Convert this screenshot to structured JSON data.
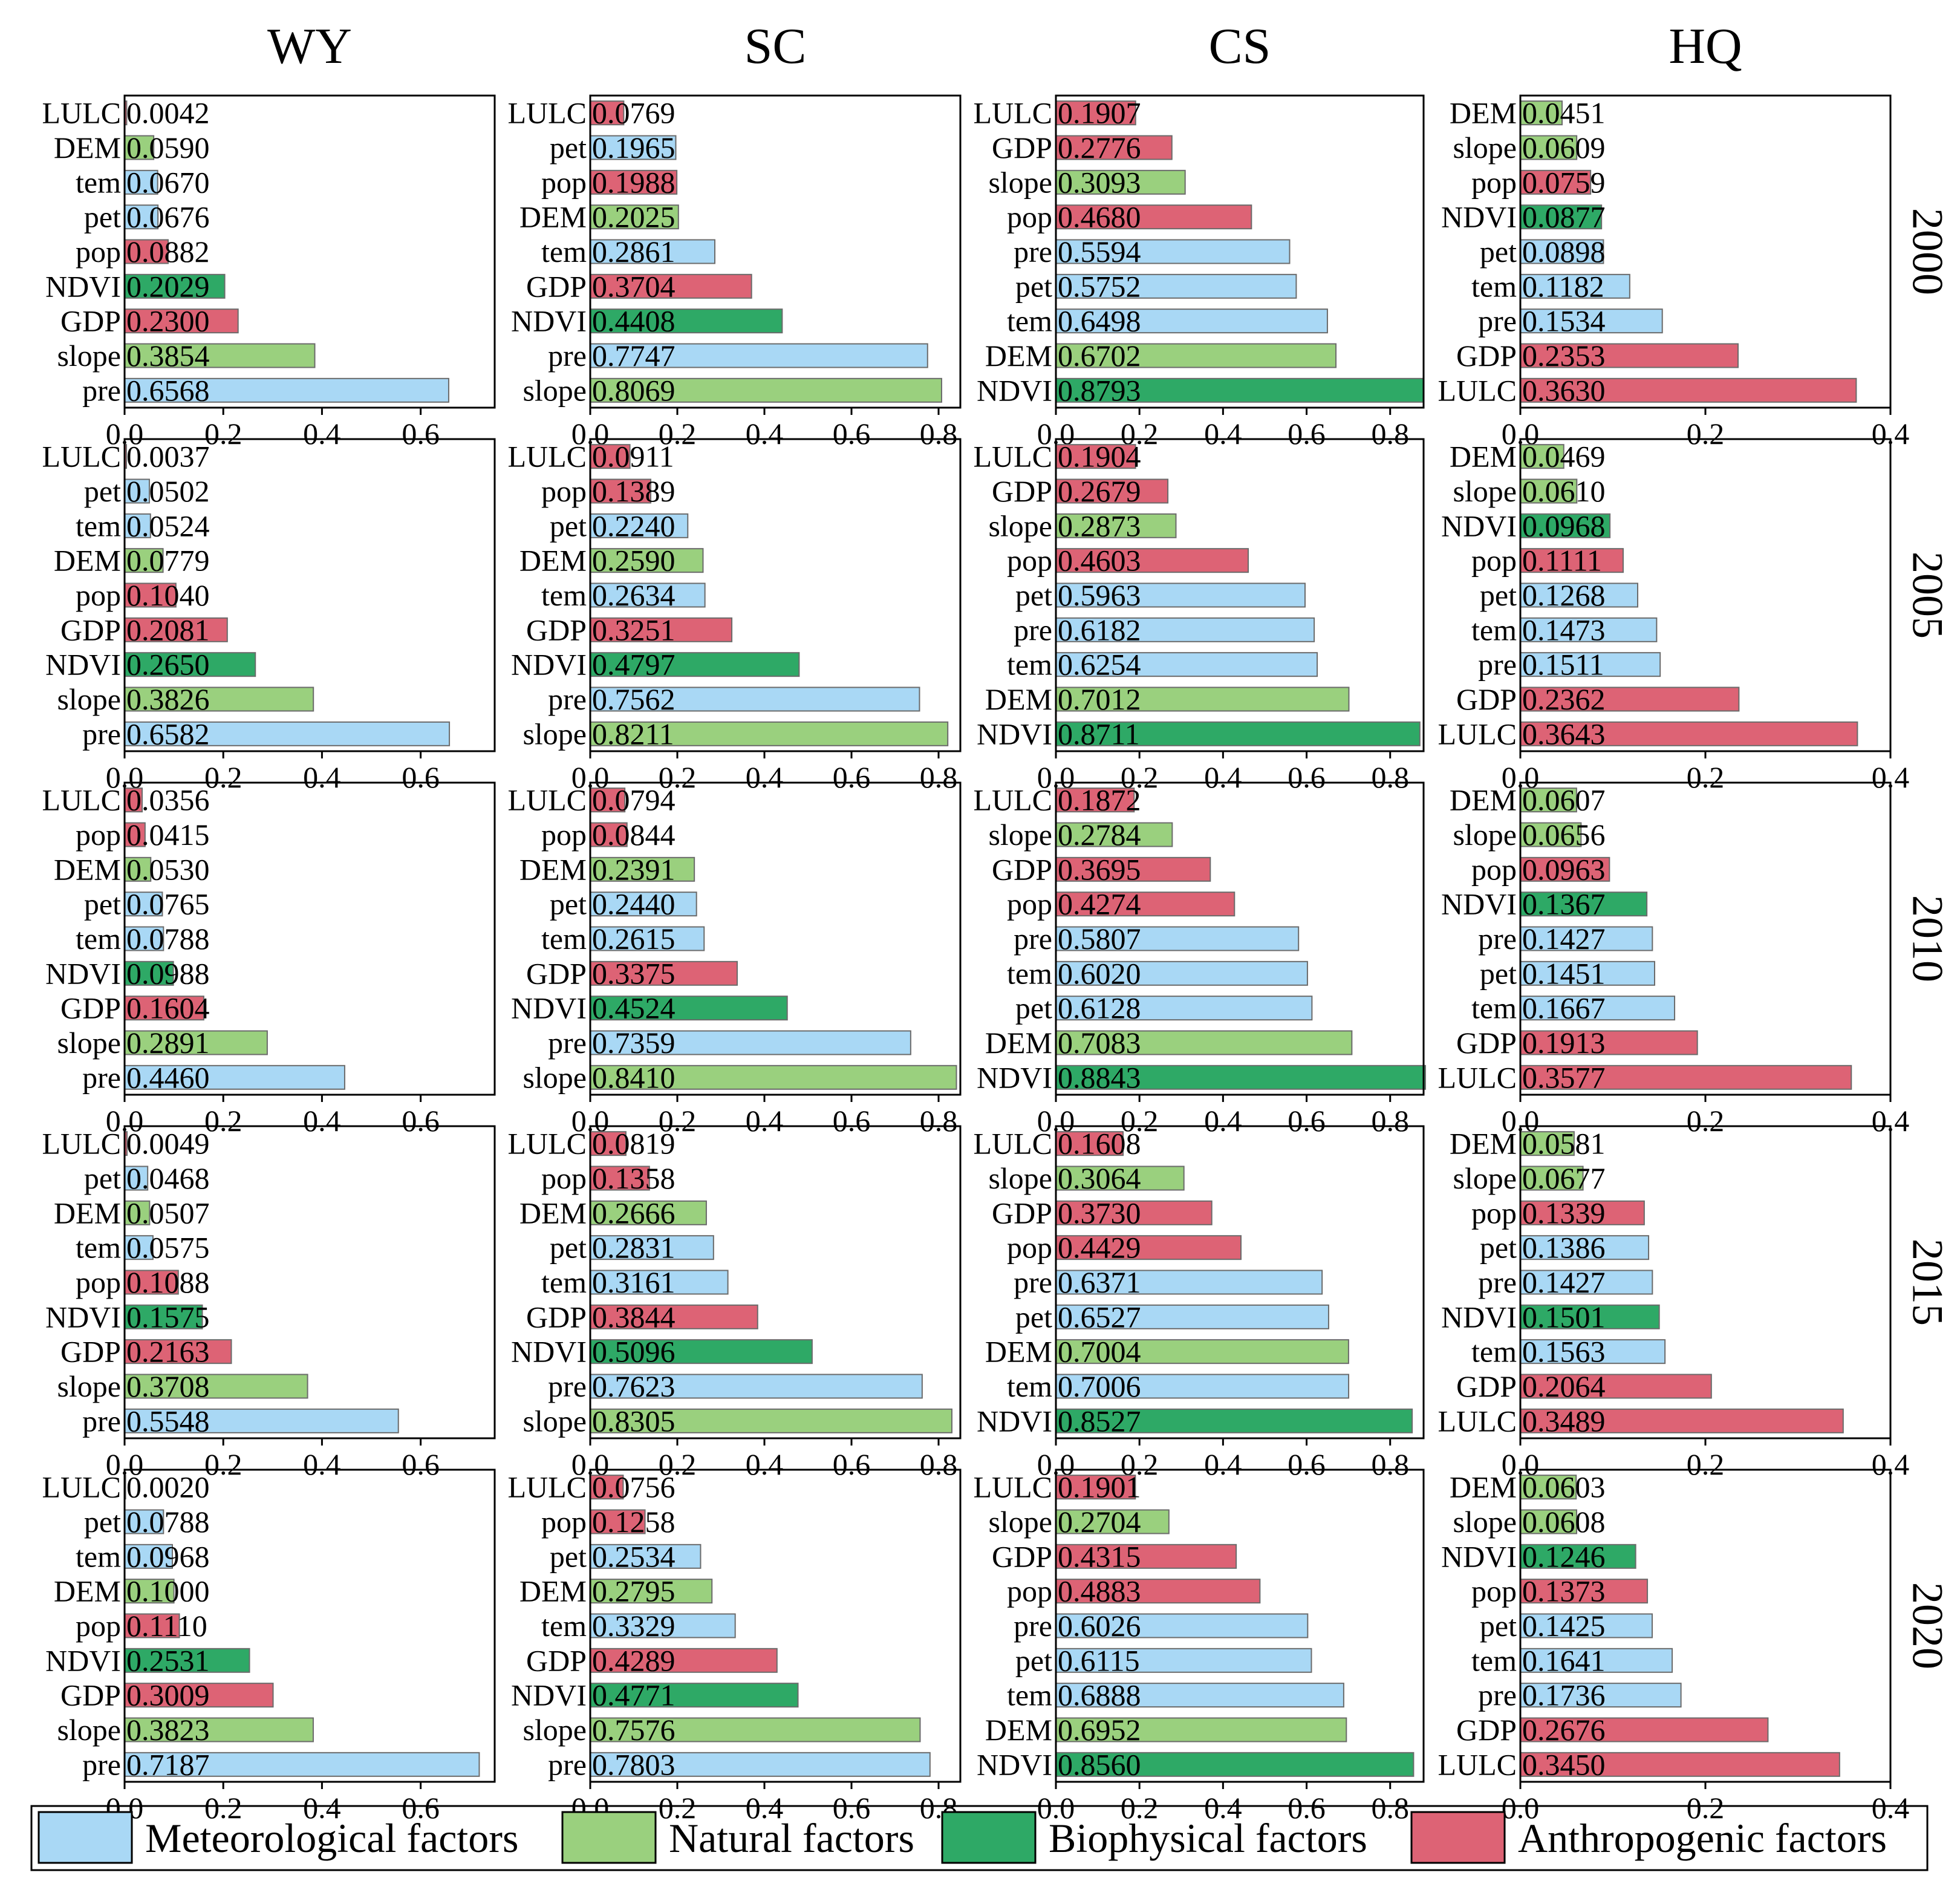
{
  "chart_data": {
    "type": "bar",
    "orientation": "horizontal",
    "columns": [
      "WY",
      "SC",
      "CS",
      "HQ"
    ],
    "rows": [
      "2000",
      "2005",
      "2010",
      "2015",
      "2020"
    ],
    "xlim": {
      "WY": [
        0,
        0.75
      ],
      "SC": [
        0,
        0.85
      ],
      "CS": [
        0,
        0.88
      ],
      "HQ": [
        0,
        0.4
      ]
    },
    "xticks": {
      "WY": [
        "0.0",
        "0.2",
        "0.4",
        "0.6"
      ],
      "SC": [
        "0.0",
        "0.2",
        "0.4",
        "0.6",
        "0.8"
      ],
      "CS": [
        "0.0",
        "0.2",
        "0.4",
        "0.6",
        "0.8"
      ],
      "HQ": [
        "0.0",
        "0.2",
        "0.4"
      ]
    },
    "categories": {
      "meteorological": "Meteorological factors",
      "natural": "Natural factors",
      "biophysical": "Biophysical factors",
      "anthropogenic": "Anthropogenic factors"
    },
    "colors": {
      "meteorological": "#a9d8f5",
      "natural": "#9ad07e",
      "biophysical": "#2ea966",
      "anthropogenic": "#dd6375"
    },
    "factor_category": {
      "pre": "meteorological",
      "tem": "meteorological",
      "pet": "meteorological",
      "DEM": "natural",
      "slope": "natural",
      "NDVI": "biophysical",
      "LULC": "anthropogenic",
      "GDP": "anthropogenic",
      "pop": "anthropogenic"
    },
    "legend": {
      "position": "bottom",
      "items": [
        "meteorological",
        "natural",
        "biophysical",
        "anthropogenic"
      ]
    },
    "panels": {
      "WY": {
        "2000": [
          [
            "LULC",
            "0.0042"
          ],
          [
            "DEM",
            "0.0590"
          ],
          [
            "tem",
            "0.0670"
          ],
          [
            "pet",
            "0.0676"
          ],
          [
            "pop",
            "0.0882"
          ],
          [
            "NDVI",
            "0.2029"
          ],
          [
            "GDP",
            "0.2300"
          ],
          [
            "slope",
            "0.3854"
          ],
          [
            "pre",
            "0.6568"
          ]
        ],
        "2005": [
          [
            "LULC",
            "0.0037"
          ],
          [
            "pet",
            "0.0502"
          ],
          [
            "tem",
            "0.0524"
          ],
          [
            "DEM",
            "0.0779"
          ],
          [
            "pop",
            "0.1040"
          ],
          [
            "GDP",
            "0.2081"
          ],
          [
            "NDVI",
            "0.2650"
          ],
          [
            "slope",
            "0.3826"
          ],
          [
            "pre",
            "0.6582"
          ]
        ],
        "2010": [
          [
            "LULC",
            "0.0356"
          ],
          [
            "pop",
            "0.0415"
          ],
          [
            "DEM",
            "0.0530"
          ],
          [
            "pet",
            "0.0765"
          ],
          [
            "tem",
            "0.0788"
          ],
          [
            "NDVI",
            "0.0988"
          ],
          [
            "GDP",
            "0.1604"
          ],
          [
            "slope",
            "0.2891"
          ],
          [
            "pre",
            "0.4460"
          ]
        ],
        "2015": [
          [
            "LULC",
            "0.0049"
          ],
          [
            "pet",
            "0.0468"
          ],
          [
            "DEM",
            "0.0507"
          ],
          [
            "tem",
            "0.0575"
          ],
          [
            "pop",
            "0.1088"
          ],
          [
            "NDVI",
            "0.1575"
          ],
          [
            "GDP",
            "0.2163"
          ],
          [
            "slope",
            "0.3708"
          ],
          [
            "pre",
            "0.5548"
          ]
        ],
        "2020": [
          [
            "LULC",
            "0.0020"
          ],
          [
            "pet",
            "0.0788"
          ],
          [
            "tem",
            "0.0968"
          ],
          [
            "DEM",
            "0.1000"
          ],
          [
            "pop",
            "0.1110"
          ],
          [
            "NDVI",
            "0.2531"
          ],
          [
            "GDP",
            "0.3009"
          ],
          [
            "slope",
            "0.3823"
          ],
          [
            "pre",
            "0.7187"
          ]
        ]
      },
      "SC": {
        "2000": [
          [
            "LULC",
            "0.0769"
          ],
          [
            "pet",
            "0.1965"
          ],
          [
            "pop",
            "0.1988"
          ],
          [
            "DEM",
            "0.2025"
          ],
          [
            "tem",
            "0.2861"
          ],
          [
            "GDP",
            "0.3704"
          ],
          [
            "NDVI",
            "0.4408"
          ],
          [
            "pre",
            "0.7747"
          ],
          [
            "slope",
            "0.8069"
          ]
        ],
        "2005": [
          [
            "LULC",
            "0.0911"
          ],
          [
            "pop",
            "0.1389"
          ],
          [
            "pet",
            "0.2240"
          ],
          [
            "DEM",
            "0.2590"
          ],
          [
            "tem",
            "0.2634"
          ],
          [
            "GDP",
            "0.3251"
          ],
          [
            "NDVI",
            "0.4797"
          ],
          [
            "pre",
            "0.7562"
          ],
          [
            "slope",
            "0.8211"
          ]
        ],
        "2010": [
          [
            "LULC",
            "0.0794"
          ],
          [
            "pop",
            "0.0844"
          ],
          [
            "DEM",
            "0.2391"
          ],
          [
            "pet",
            "0.2440"
          ],
          [
            "tem",
            "0.2615"
          ],
          [
            "GDP",
            "0.3375"
          ],
          [
            "NDVI",
            "0.4524"
          ],
          [
            "pre",
            "0.7359"
          ],
          [
            "slope",
            "0.8410"
          ]
        ],
        "2015": [
          [
            "LULC",
            "0.0819"
          ],
          [
            "pop",
            "0.1358"
          ],
          [
            "DEM",
            "0.2666"
          ],
          [
            "pet",
            "0.2831"
          ],
          [
            "tem",
            "0.3161"
          ],
          [
            "GDP",
            "0.3844"
          ],
          [
            "NDVI",
            "0.5096"
          ],
          [
            "pre",
            "0.7623"
          ],
          [
            "slope",
            "0.8305"
          ]
        ],
        "2020": [
          [
            "LULC",
            "0.0756"
          ],
          [
            "pop",
            "0.1258"
          ],
          [
            "pet",
            "0.2534"
          ],
          [
            "DEM",
            "0.2795"
          ],
          [
            "tem",
            "0.3329"
          ],
          [
            "GDP",
            "0.4289"
          ],
          [
            "NDVI",
            "0.4771"
          ],
          [
            "slope",
            "0.7576"
          ],
          [
            "pre",
            "0.7803"
          ]
        ]
      },
      "CS": {
        "2000": [
          [
            "LULC",
            "0.1907"
          ],
          [
            "GDP",
            "0.2776"
          ],
          [
            "slope",
            "0.3093"
          ],
          [
            "pop",
            "0.4680"
          ],
          [
            "pre",
            "0.5594"
          ],
          [
            "pet",
            "0.5752"
          ],
          [
            "tem",
            "0.6498"
          ],
          [
            "DEM",
            "0.6702"
          ],
          [
            "NDVI",
            "0.8793"
          ]
        ],
        "2005": [
          [
            "LULC",
            "0.1904"
          ],
          [
            "GDP",
            "0.2679"
          ],
          [
            "slope",
            "0.2873"
          ],
          [
            "pop",
            "0.4603"
          ],
          [
            "pet",
            "0.5963"
          ],
          [
            "pre",
            "0.6182"
          ],
          [
            "tem",
            "0.6254"
          ],
          [
            "DEM",
            "0.7012"
          ],
          [
            "NDVI",
            "0.8711"
          ]
        ],
        "2010": [
          [
            "LULC",
            "0.1872"
          ],
          [
            "slope",
            "0.2784"
          ],
          [
            "GDP",
            "0.3695"
          ],
          [
            "pop",
            "0.4274"
          ],
          [
            "pre",
            "0.5807"
          ],
          [
            "tem",
            "0.6020"
          ],
          [
            "pet",
            "0.6128"
          ],
          [
            "DEM",
            "0.7083"
          ],
          [
            "NDVI",
            "0.8843"
          ]
        ],
        "2015": [
          [
            "LULC",
            "0.1608"
          ],
          [
            "slope",
            "0.3064"
          ],
          [
            "GDP",
            "0.3730"
          ],
          [
            "pop",
            "0.4429"
          ],
          [
            "pre",
            "0.6371"
          ],
          [
            "pet",
            "0.6527"
          ],
          [
            "DEM",
            "0.7004"
          ],
          [
            "tem",
            "0.7006"
          ],
          [
            "NDVI",
            "0.8527"
          ]
        ],
        "2020": [
          [
            "LULC",
            "0.1901"
          ],
          [
            "slope",
            "0.2704"
          ],
          [
            "GDP",
            "0.4315"
          ],
          [
            "pop",
            "0.4883"
          ],
          [
            "pre",
            "0.6026"
          ],
          [
            "pet",
            "0.6115"
          ],
          [
            "tem",
            "0.6888"
          ],
          [
            "DEM",
            "0.6952"
          ],
          [
            "NDVI",
            "0.8560"
          ]
        ]
      },
      "HQ": {
        "2000": [
          [
            "DEM",
            "0.0451"
          ],
          [
            "slope",
            "0.0609"
          ],
          [
            "pop",
            "0.0759"
          ],
          [
            "NDVI",
            "0.0877"
          ],
          [
            "pet",
            "0.0898"
          ],
          [
            "tem",
            "0.1182"
          ],
          [
            "pre",
            "0.1534"
          ],
          [
            "GDP",
            "0.2353"
          ],
          [
            "LULC",
            "0.3630"
          ]
        ],
        "2005": [
          [
            "DEM",
            "0.0469"
          ],
          [
            "slope",
            "0.0610"
          ],
          [
            "NDVI",
            "0.0968"
          ],
          [
            "pop",
            "0.1111"
          ],
          [
            "pet",
            "0.1268"
          ],
          [
            "tem",
            "0.1473"
          ],
          [
            "pre",
            "0.1511"
          ],
          [
            "GDP",
            "0.2362"
          ],
          [
            "LULC",
            "0.3643"
          ]
        ],
        "2010": [
          [
            "DEM",
            "0.0607"
          ],
          [
            "slope",
            "0.0656"
          ],
          [
            "pop",
            "0.0963"
          ],
          [
            "NDVI",
            "0.1367"
          ],
          [
            "pre",
            "0.1427"
          ],
          [
            "pet",
            "0.1451"
          ],
          [
            "tem",
            "0.1667"
          ],
          [
            "GDP",
            "0.1913"
          ],
          [
            "LULC",
            "0.3577"
          ]
        ],
        "2015": [
          [
            "DEM",
            "0.0581"
          ],
          [
            "slope",
            "0.0677"
          ],
          [
            "pop",
            "0.1339"
          ],
          [
            "pet",
            "0.1386"
          ],
          [
            "pre",
            "0.1427"
          ],
          [
            "NDVI",
            "0.1501"
          ],
          [
            "tem",
            "0.1563"
          ],
          [
            "GDP",
            "0.2064"
          ],
          [
            "LULC",
            "0.3489"
          ]
        ],
        "2020": [
          [
            "DEM",
            "0.0603"
          ],
          [
            "slope",
            "0.0608"
          ],
          [
            "NDVI",
            "0.1246"
          ],
          [
            "pop",
            "0.1373"
          ],
          [
            "pet",
            "0.1425"
          ],
          [
            "tem",
            "0.1641"
          ],
          [
            "pre",
            "0.1736"
          ],
          [
            "GDP",
            "0.2676"
          ],
          [
            "LULC",
            "0.3450"
          ]
        ]
      }
    }
  }
}
